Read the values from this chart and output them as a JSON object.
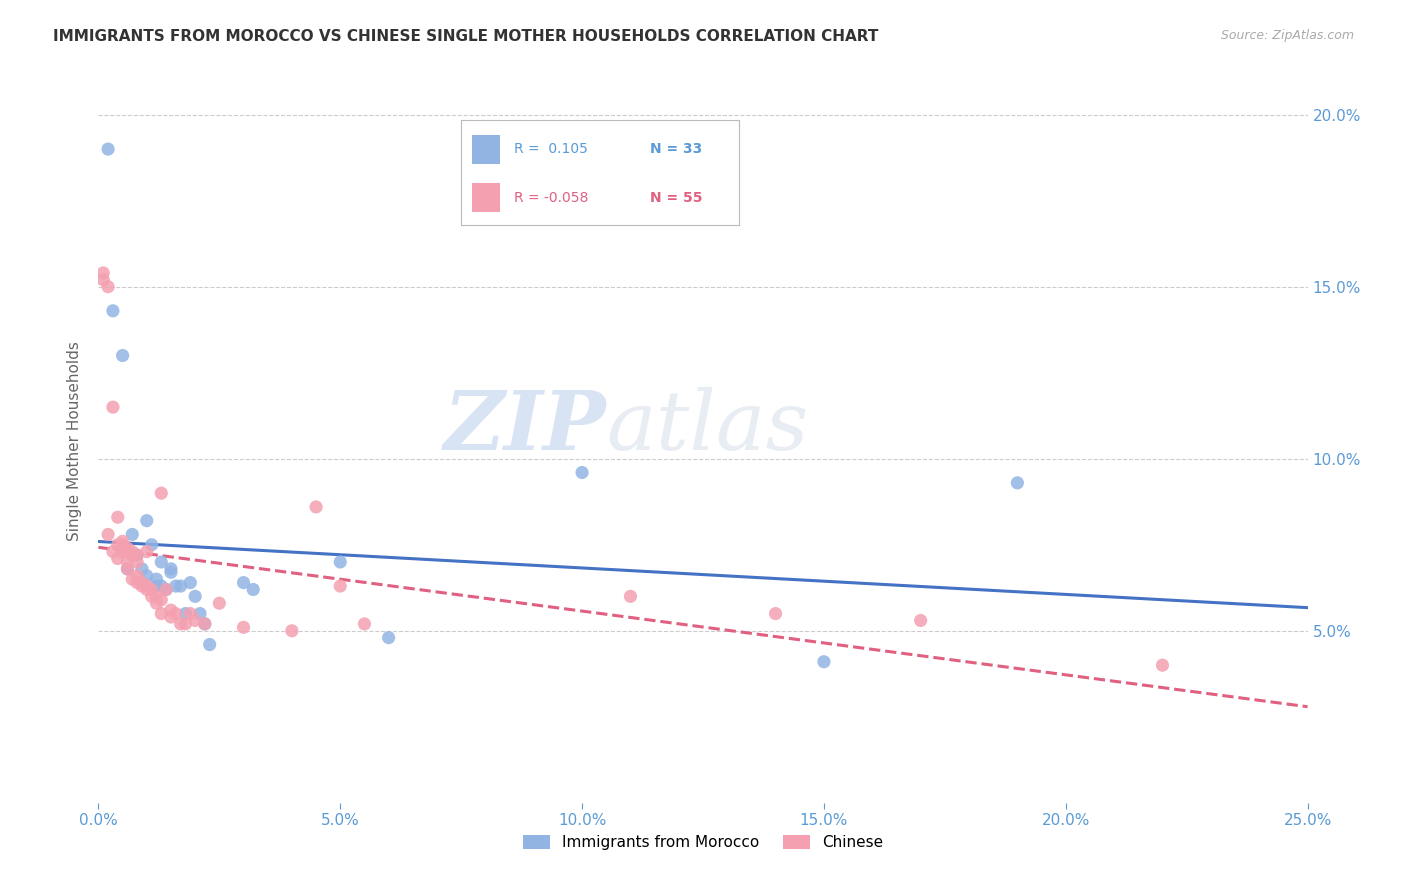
{
  "title": "IMMIGRANTS FROM MOROCCO VS CHINESE SINGLE MOTHER HOUSEHOLDS CORRELATION CHART",
  "source": "Source: ZipAtlas.com",
  "ylabel": "Single Mother Households",
  "xlim": [
    0.0,
    0.25
  ],
  "ylim": [
    0.0,
    0.21
  ],
  "xticks": [
    0.0,
    0.05,
    0.1,
    0.15,
    0.2,
    0.25
  ],
  "yticks": [
    0.05,
    0.1,
    0.15,
    0.2
  ],
  "morocco_color": "#92b4e3",
  "chinese_color": "#f4a0b0",
  "morocco_line_color": "#4472c4",
  "chinese_line_color": "#e06080",
  "legend_r1": "R =  0.105",
  "legend_n1": "N = 33",
  "legend_r2": "R = -0.058",
  "legend_n2": "N = 55",
  "watermark_zip": "ZIP",
  "watermark_atlas": "atlas",
  "morocco_points": [
    [
      0.002,
      0.19
    ],
    [
      0.003,
      0.143
    ],
    [
      0.005,
      0.13
    ],
    [
      0.006,
      0.068
    ],
    [
      0.007,
      0.078
    ],
    [
      0.007,
      0.072
    ],
    [
      0.008,
      0.072
    ],
    [
      0.009,
      0.068
    ],
    [
      0.01,
      0.082
    ],
    [
      0.01,
      0.066
    ],
    [
      0.011,
      0.075
    ],
    [
      0.012,
      0.065
    ],
    [
      0.012,
      0.063
    ],
    [
      0.013,
      0.07
    ],
    [
      0.013,
      0.063
    ],
    [
      0.014,
      0.062
    ],
    [
      0.015,
      0.067
    ],
    [
      0.015,
      0.068
    ],
    [
      0.016,
      0.063
    ],
    [
      0.017,
      0.063
    ],
    [
      0.018,
      0.055
    ],
    [
      0.019,
      0.064
    ],
    [
      0.02,
      0.06
    ],
    [
      0.021,
      0.055
    ],
    [
      0.022,
      0.052
    ],
    [
      0.023,
      0.046
    ],
    [
      0.03,
      0.064
    ],
    [
      0.032,
      0.062
    ],
    [
      0.05,
      0.07
    ],
    [
      0.06,
      0.048
    ],
    [
      0.1,
      0.096
    ],
    [
      0.15,
      0.041
    ],
    [
      0.19,
      0.093
    ]
  ],
  "chinese_points": [
    [
      0.001,
      0.152
    ],
    [
      0.001,
      0.154
    ],
    [
      0.002,
      0.15
    ],
    [
      0.002,
      0.078
    ],
    [
      0.003,
      0.073
    ],
    [
      0.003,
      0.115
    ],
    [
      0.004,
      0.083
    ],
    [
      0.004,
      0.075
    ],
    [
      0.004,
      0.071
    ],
    [
      0.005,
      0.074
    ],
    [
      0.005,
      0.076
    ],
    [
      0.005,
      0.073
    ],
    [
      0.005,
      0.075
    ],
    [
      0.006,
      0.073
    ],
    [
      0.006,
      0.074
    ],
    [
      0.006,
      0.068
    ],
    [
      0.006,
      0.07
    ],
    [
      0.007,
      0.072
    ],
    [
      0.007,
      0.073
    ],
    [
      0.007,
      0.065
    ],
    [
      0.008,
      0.07
    ],
    [
      0.008,
      0.072
    ],
    [
      0.008,
      0.064
    ],
    [
      0.008,
      0.066
    ],
    [
      0.009,
      0.063
    ],
    [
      0.009,
      0.064
    ],
    [
      0.01,
      0.062
    ],
    [
      0.01,
      0.073
    ],
    [
      0.01,
      0.063
    ],
    [
      0.011,
      0.062
    ],
    [
      0.011,
      0.06
    ],
    [
      0.012,
      0.058
    ],
    [
      0.012,
      0.06
    ],
    [
      0.013,
      0.055
    ],
    [
      0.013,
      0.059
    ],
    [
      0.013,
      0.09
    ],
    [
      0.014,
      0.062
    ],
    [
      0.015,
      0.054
    ],
    [
      0.015,
      0.056
    ],
    [
      0.016,
      0.055
    ],
    [
      0.017,
      0.052
    ],
    [
      0.018,
      0.052
    ],
    [
      0.019,
      0.055
    ],
    [
      0.02,
      0.053
    ],
    [
      0.022,
      0.052
    ],
    [
      0.025,
      0.058
    ],
    [
      0.03,
      0.051
    ],
    [
      0.04,
      0.05
    ],
    [
      0.045,
      0.086
    ],
    [
      0.05,
      0.063
    ],
    [
      0.055,
      0.052
    ],
    [
      0.11,
      0.06
    ],
    [
      0.14,
      0.055
    ],
    [
      0.17,
      0.053
    ],
    [
      0.22,
      0.04
    ]
  ]
}
